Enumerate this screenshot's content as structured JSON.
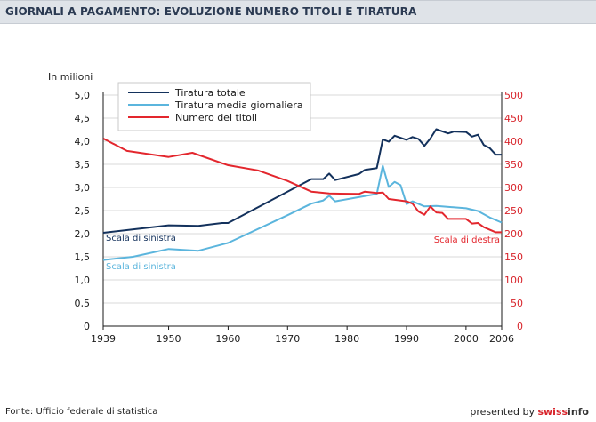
{
  "header": {
    "title": "GIORNALI A PAGAMENTO: EVOLUZIONE NUMERO TITOLI E TIRATURA"
  },
  "footer": {
    "source": "Fonte: Ufficio federale di statistica",
    "presented_by": "presented by ",
    "brand_swiss": "swiss",
    "brand_info": "info"
  },
  "colors": {
    "tiratura_totale": "#13315c",
    "tiratura_media": "#5bb5dd",
    "numero_titoli": "#e3262d",
    "grid": "#d9d9d9",
    "axis_left": "#1a1a1a",
    "axis_right": "#d8232a"
  },
  "chart_data": {
    "type": "line",
    "ylabel": "In milioni",
    "left_axis": {
      "ylim": [
        0,
        5.0
      ],
      "ticks": [
        "0",
        "0,5",
        "1,0",
        "1,5",
        "2,0",
        "2,5",
        "3,0",
        "3,5",
        "4,0",
        "4,5",
        "5,0"
      ]
    },
    "right_axis": {
      "ylim": [
        0,
        500
      ],
      "ticks": [
        "0",
        "50",
        "100",
        "150",
        "200",
        "250",
        "300",
        "350",
        "400",
        "450",
        "500"
      ]
    },
    "xlim": [
      1939,
      2006
    ],
    "x_ticks": [
      "1939",
      "1950",
      "1960",
      "1970",
      "1980",
      "1990",
      "2000",
      "2006"
    ],
    "grid": true,
    "legend_position": "top-left",
    "annotations": {
      "left_scale_dark": "Scala di sinistra",
      "left_scale_light": "Scala di sinistra",
      "right_scale": "Scala di destra"
    },
    "series": [
      {
        "name": "Tiratura totale",
        "axis": "left",
        "points": [
          [
            1939,
            2.02
          ],
          [
            1950,
            2.18
          ],
          [
            1955,
            2.17
          ],
          [
            1959,
            2.23
          ],
          [
            1960,
            2.23
          ],
          [
            1974,
            3.18
          ],
          [
            1976,
            3.18
          ],
          [
            1977,
            3.3
          ],
          [
            1978,
            3.16
          ],
          [
            1982,
            3.29
          ],
          [
            1983,
            3.38
          ],
          [
            1985,
            3.42
          ],
          [
            1986,
            4.04
          ],
          [
            1987,
            3.99
          ],
          [
            1988,
            4.12
          ],
          [
            1990,
            4.03
          ],
          [
            1991,
            4.09
          ],
          [
            1992,
            4.05
          ],
          [
            1993,
            3.9
          ],
          [
            1994,
            4.06
          ],
          [
            1995,
            4.26
          ],
          [
            1997,
            4.17
          ],
          [
            1998,
            4.21
          ],
          [
            2000,
            4.2
          ],
          [
            2001,
            4.1
          ],
          [
            2002,
            4.14
          ],
          [
            2003,
            3.92
          ],
          [
            2004,
            3.85
          ],
          [
            2005,
            3.71
          ],
          [
            2006,
            3.71
          ]
        ]
      },
      {
        "name": "Tiratura media giornaliera",
        "axis": "left",
        "points": [
          [
            1939,
            1.43
          ],
          [
            1944,
            1.5
          ],
          [
            1950,
            1.67
          ],
          [
            1955,
            1.63
          ],
          [
            1960,
            1.8
          ],
          [
            1970,
            2.4
          ],
          [
            1974,
            2.65
          ],
          [
            1976,
            2.72
          ],
          [
            1977,
            2.82
          ],
          [
            1978,
            2.7
          ],
          [
            1982,
            2.79
          ],
          [
            1985,
            2.86
          ],
          [
            1986,
            3.47
          ],
          [
            1987,
            3.01
          ],
          [
            1988,
            3.12
          ],
          [
            1989,
            3.05
          ],
          [
            1990,
            2.64
          ],
          [
            1991,
            2.7
          ],
          [
            1993,
            2.59
          ],
          [
            1995,
            2.6
          ],
          [
            2000,
            2.55
          ],
          [
            2002,
            2.49
          ],
          [
            2004,
            2.35
          ],
          [
            2006,
            2.24
          ]
        ]
      },
      {
        "name": "Numero dei titoli",
        "axis": "right",
        "points": [
          [
            1939,
            406
          ],
          [
            1943,
            379
          ],
          [
            1950,
            366
          ],
          [
            1954,
            375
          ],
          [
            1960,
            348
          ],
          [
            1965,
            337
          ],
          [
            1970,
            314
          ],
          [
            1974,
            291
          ],
          [
            1977,
            287
          ],
          [
            1982,
            286
          ],
          [
            1983,
            291
          ],
          [
            1985,
            288
          ],
          [
            1986,
            289
          ],
          [
            1987,
            275
          ],
          [
            1990,
            270
          ],
          [
            1991,
            265
          ],
          [
            1992,
            248
          ],
          [
            1993,
            241
          ],
          [
            1994,
            259
          ],
          [
            1995,
            246
          ],
          [
            1996,
            245
          ],
          [
            1997,
            232
          ],
          [
            1999,
            232
          ],
          [
            2000,
            232
          ],
          [
            2001,
            222
          ],
          [
            2002,
            223
          ],
          [
            2003,
            214
          ],
          [
            2005,
            203
          ],
          [
            2006,
            203
          ]
        ]
      }
    ]
  }
}
